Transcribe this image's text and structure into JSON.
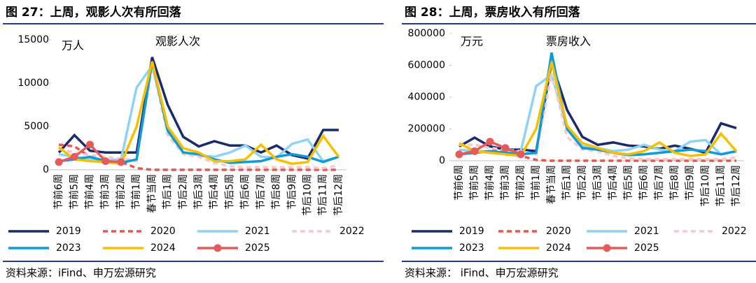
{
  "chart_data": [
    {
      "type": "line",
      "title": "图 27：上周，观影人次有所回落",
      "unit": "万人",
      "annotation": "观影人次",
      "source": "资料来源：iFind、申万宏源研究",
      "categories": [
        "节前6周",
        "节前5周",
        "节前4周",
        "节前3周",
        "节前2周",
        "节前1周",
        "春节当周",
        "节后1周",
        "节后2周",
        "节后3周",
        "节后4周",
        "节后5周",
        "节后6周",
        "节后7周",
        "节后8周",
        "节后9周",
        "节后10周",
        "节后11周",
        "节后12周"
      ],
      "ylim": [
        0,
        15000
      ],
      "yticks": [
        0,
        5000,
        10000,
        15000
      ],
      "series": [
        {
          "name": "2019",
          "color": "#1a2a6c",
          "values": [
            2000,
            4000,
            2200,
            2000,
            2000,
            2000,
            13000,
            7500,
            3800,
            2700,
            3300,
            2800,
            2800,
            2000,
            2800,
            1700,
            1300,
            4600,
            4600
          ]
        },
        {
          "name": "2020",
          "color": "#e05a4f",
          "dashed": true,
          "values": [
            2900,
            2700,
            1500,
            1000,
            900,
            200,
            0,
            0,
            0,
            0,
            0,
            0,
            0,
            0,
            0,
            0,
            0,
            0,
            0
          ]
        },
        {
          "name": "2021",
          "color": "#8fd3f4",
          "values": [
            1800,
            1500,
            1300,
            1100,
            1200,
            9500,
            12000,
            5000,
            2000,
            1700,
            1500,
            2000,
            2800,
            1500,
            1400,
            3000,
            3500,
            1000,
            1500
          ]
        },
        {
          "name": "2022",
          "color": "#f7c9cf",
          "dashed": true,
          "values": [
            2400,
            2000,
            1700,
            1500,
            1300,
            1000,
            12000,
            4000,
            1800,
            1500,
            800,
            400,
            300,
            300,
            300,
            300,
            300,
            200,
            500
          ]
        },
        {
          "name": "2023",
          "color": "#0e9bd8",
          "values": [
            1000,
            1200,
            1500,
            1000,
            800,
            1200,
            12500,
            4500,
            2000,
            1800,
            1200,
            800,
            900,
            1000,
            1500,
            1800,
            1500,
            900,
            1500
          ]
        },
        {
          "name": "2024",
          "color": "#f5c000",
          "values": [
            2600,
            1200,
            1000,
            900,
            700,
            5000,
            12500,
            5000,
            2500,
            2000,
            1000,
            1000,
            1200,
            2900,
            1200,
            700,
            900,
            3900,
            1500
          ]
        },
        {
          "name": "2025",
          "color": "#e55a5a",
          "marker": true,
          "values": [
            900,
            1500,
            2900,
            1000,
            900,
            null,
            null,
            null,
            null,
            null,
            null,
            null,
            null,
            null,
            null,
            null,
            null,
            null,
            null
          ]
        }
      ]
    },
    {
      "type": "line",
      "title": "图 28：上周，票房收入有所回落",
      "unit": "万元",
      "annotation": "票房收入",
      "source": "资料来源： iFind、申万宏源研究",
      "categories": [
        "节前6周",
        "节前5周",
        "节前4周",
        "节前3周",
        "节前2周",
        "节前1周",
        "春节当周",
        "节后1周",
        "节后2周",
        "节后3周",
        "节后4周",
        "节后5周",
        "节后6周",
        "节后7周",
        "节后8周",
        "节后9周",
        "节后10周",
        "节后11周",
        "节后12周"
      ],
      "ylim": [
        0,
        800000
      ],
      "yticks": [
        0,
        200000,
        400000,
        600000,
        800000
      ],
      "series": [
        {
          "name": "2019",
          "color": "#1a2a6c",
          "values": [
            90000,
            145000,
            90000,
            70000,
            70000,
            60000,
            620000,
            320000,
            150000,
            100000,
            115000,
            95000,
            90000,
            75000,
            95000,
            75000,
            50000,
            235000,
            205000
          ]
        },
        {
          "name": "2020",
          "color": "#e05a4f",
          "dashed": true,
          "values": [
            100000,
            100000,
            80000,
            50000,
            30000,
            5000,
            0,
            0,
            0,
            0,
            0,
            0,
            0,
            0,
            0,
            0,
            0,
            0,
            0
          ]
        },
        {
          "name": "2021",
          "color": "#8fd3f4",
          "values": [
            70000,
            60000,
            60000,
            50000,
            60000,
            470000,
            540000,
            210000,
            90000,
            80000,
            60000,
            70000,
            100000,
            70000,
            60000,
            120000,
            130000,
            40000,
            60000
          ]
        },
        {
          "name": "2022",
          "color": "#f7c9cf",
          "dashed": true,
          "values": [
            100000,
            100000,
            80000,
            70000,
            60000,
            40000,
            550000,
            150000,
            70000,
            60000,
            30000,
            15000,
            10000,
            10000,
            10000,
            10000,
            10000,
            10000,
            20000
          ]
        },
        {
          "name": "2023",
          "color": "#0e9bd8",
          "values": [
            40000,
            50000,
            60000,
            50000,
            40000,
            50000,
            680000,
            200000,
            80000,
            70000,
            50000,
            35000,
            40000,
            50000,
            60000,
            70000,
            60000,
            40000,
            60000
          ]
        },
        {
          "name": "2024",
          "color": "#f5c000",
          "values": [
            110000,
            60000,
            50000,
            40000,
            30000,
            200000,
            620000,
            220000,
            110000,
            80000,
            50000,
            40000,
            60000,
            115000,
            50000,
            30000,
            40000,
            170000,
            60000
          ]
        },
        {
          "name": "2025",
          "color": "#e55a5a",
          "marker": true,
          "values": [
            40000,
            60000,
            120000,
            80000,
            40000,
            null,
            null,
            null,
            null,
            null,
            null,
            null,
            null,
            null,
            null,
            null,
            null,
            null,
            null
          ]
        }
      ]
    }
  ]
}
